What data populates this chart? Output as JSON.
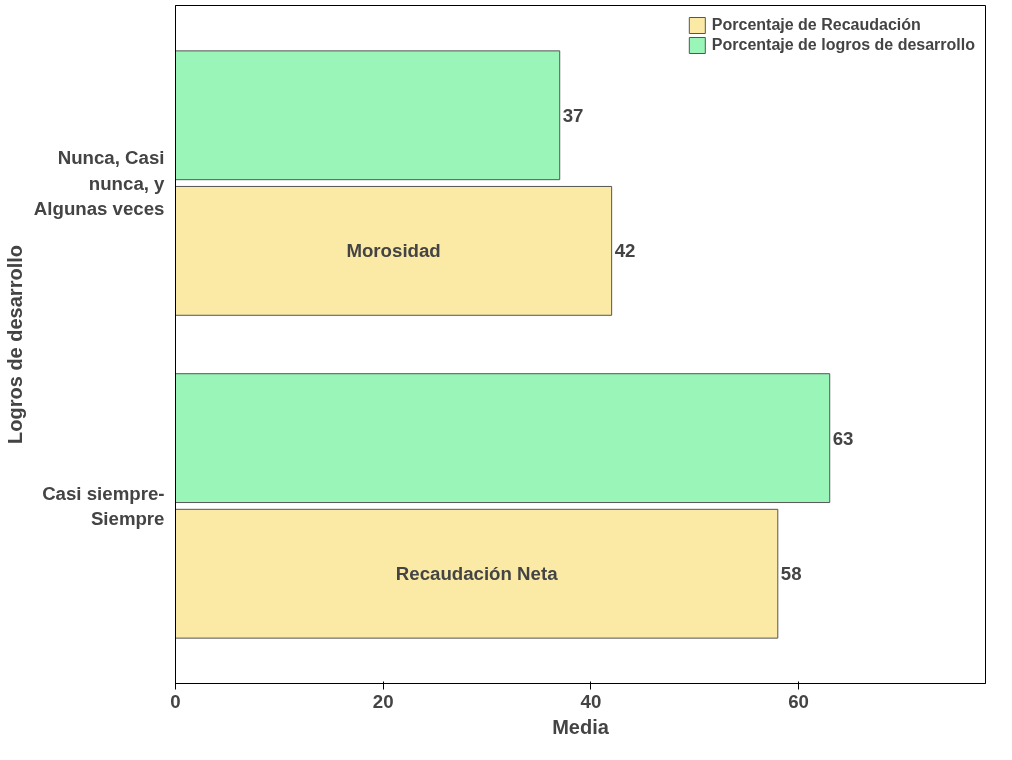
{
  "chart_data": {
    "type": "bar",
    "orientation": "horizontal",
    "xlabel": "Media",
    "ylabel": "Logros de desarrollo",
    "categories": [
      "Nunca, Casi nunca, y Algunas veces",
      "Casi siempre-Siempre"
    ],
    "series": [
      {
        "name": "Porcentaje de Recaudación",
        "color": "#fbeaa6",
        "values": [
          42,
          58
        ]
      },
      {
        "name": "Porcentaje de logros de desarrollo",
        "color": "#99f5b8",
        "values": [
          37,
          63
        ]
      }
    ],
    "xlim": [
      0,
      78
    ],
    "xticks": [
      0,
      20,
      40,
      60
    ],
    "grid": false,
    "legend": "top right",
    "data_labels": true,
    "annotations": [
      "Morosidad",
      "Recaudación Neta"
    ]
  }
}
